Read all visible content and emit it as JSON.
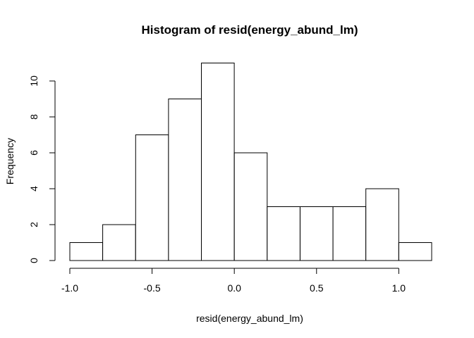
{
  "chart_data": {
    "type": "bar",
    "subtype": "histogram",
    "title": "Histogram of resid(energy_abund_lm)",
    "xlabel": "resid(energy_abund_lm)",
    "ylabel": "Frequency",
    "bins": [
      {
        "start": -1.0,
        "end": -0.8,
        "count": 1
      },
      {
        "start": -0.8,
        "end": -0.6,
        "count": 2
      },
      {
        "start": -0.6,
        "end": -0.4,
        "count": 7
      },
      {
        "start": -0.4,
        "end": -0.2,
        "count": 9
      },
      {
        "start": -0.2,
        "end": 0.0,
        "count": 11
      },
      {
        "start": 0.0,
        "end": 0.2,
        "count": 6
      },
      {
        "start": 0.2,
        "end": 0.4,
        "count": 3
      },
      {
        "start": 0.4,
        "end": 0.6,
        "count": 3
      },
      {
        "start": 0.6,
        "end": 0.8,
        "count": 3
      },
      {
        "start": 0.8,
        "end": 1.0,
        "count": 4
      },
      {
        "start": 1.0,
        "end": 1.2,
        "count": 1
      }
    ],
    "xlim": [
      -1.0,
      1.2
    ],
    "ylim": [
      0,
      11
    ],
    "x_ticks": [
      {
        "value": -1.0,
        "label": "-1.0"
      },
      {
        "value": -0.5,
        "label": "-0.5"
      },
      {
        "value": 0.0,
        "label": "0.0"
      },
      {
        "value": 0.5,
        "label": "0.5"
      },
      {
        "value": 1.0,
        "label": "1.0"
      }
    ],
    "y_ticks": [
      {
        "value": 0,
        "label": "0"
      },
      {
        "value": 2,
        "label": "2"
      },
      {
        "value": 4,
        "label": "4"
      },
      {
        "value": 6,
        "label": "6"
      },
      {
        "value": 8,
        "label": "8"
      },
      {
        "value": 10,
        "label": "10"
      }
    ],
    "grid": false,
    "bar_fill": "#ffffff",
    "bar_stroke": "#000000"
  }
}
